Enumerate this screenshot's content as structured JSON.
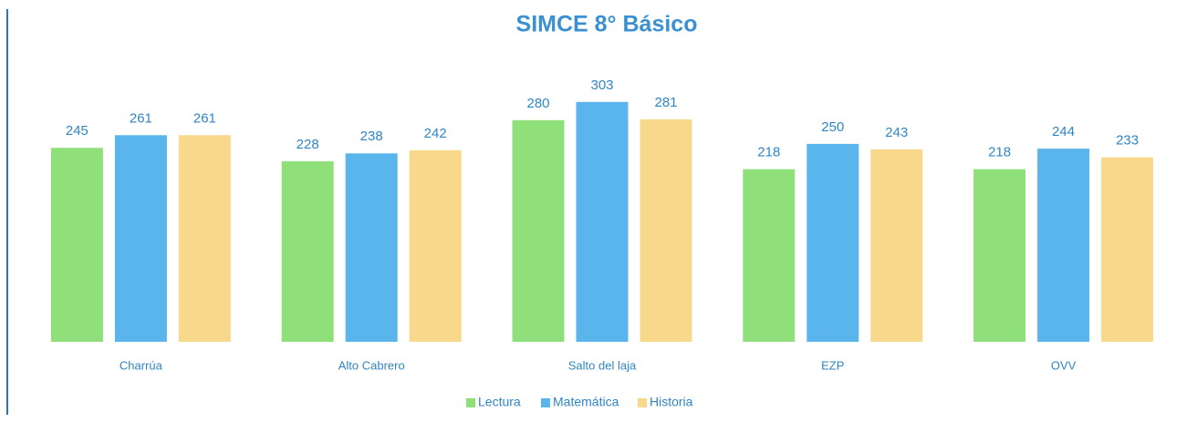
{
  "chart_data": {
    "type": "bar",
    "title": "SIMCE 8° Básico",
    "categories": [
      "Charrúa",
      "Alto Cabrero",
      "Salto del laja",
      "EZP",
      "OVV"
    ],
    "series": [
      {
        "name": "Lectura",
        "color": "#8fe07a",
        "values": [
          245,
          228,
          280,
          218,
          218
        ]
      },
      {
        "name": "Matemática",
        "color": "#5ab5ec",
        "values": [
          261,
          238,
          303,
          250,
          244
        ]
      },
      {
        "name": "Historia",
        "color": "#f8d98c",
        "values": [
          261,
          242,
          281,
          243,
          233
        ]
      }
    ],
    "ylim": [
      0,
      350
    ],
    "legend": "bottom"
  }
}
